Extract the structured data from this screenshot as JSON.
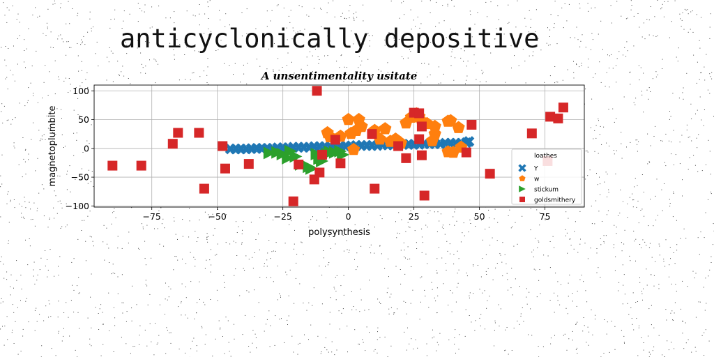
{
  "page": {
    "title": "anticyclonically depositive"
  },
  "chart_data": {
    "type": "scatter",
    "title": "A unsentimentality usitate",
    "xlabel": "polysynthesis",
    "ylabel": "magnetoplumbite",
    "xlim": [
      -97,
      90
    ],
    "ylim": [
      -102,
      110
    ],
    "xticks": [
      -75,
      -50,
      -25,
      0,
      25,
      50,
      75
    ],
    "yticks": [
      -100,
      -50,
      0,
      50,
      100
    ],
    "grid": true,
    "legend": {
      "title": "loathes",
      "placement": "lower-right"
    },
    "series": [
      {
        "name": "Y",
        "marker": "x",
        "color": "#1f77b4",
        "points": [
          [
            -45,
            -1
          ],
          [
            -43,
            -1
          ],
          [
            -41,
            -1
          ],
          [
            -39,
            -1
          ],
          [
            -37,
            -0.5
          ],
          [
            -35,
            0
          ],
          [
            -33,
            0
          ],
          [
            -31,
            0
          ],
          [
            -29,
            0
          ],
          [
            -27,
            1
          ],
          [
            -25,
            1
          ],
          [
            -23,
            1
          ],
          [
            -21,
            2
          ],
          [
            -19,
            2
          ],
          [
            -17,
            2
          ],
          [
            -15,
            2
          ],
          [
            -13,
            3
          ],
          [
            -11,
            3
          ],
          [
            -9,
            3
          ],
          [
            -7,
            3
          ],
          [
            -5,
            4
          ],
          [
            -3,
            4
          ],
          [
            -1,
            4
          ],
          [
            1,
            4
          ],
          [
            3,
            5
          ],
          [
            5,
            5
          ],
          [
            7,
            5
          ],
          [
            9,
            5
          ],
          [
            11,
            5
          ],
          [
            13,
            6
          ],
          [
            15,
            6
          ],
          [
            17,
            6
          ],
          [
            19,
            6
          ],
          [
            21,
            7
          ],
          [
            23,
            7
          ],
          [
            25,
            7
          ],
          [
            27,
            7
          ],
          [
            29,
            8
          ],
          [
            31,
            8
          ],
          [
            33,
            8
          ],
          [
            35,
            8
          ],
          [
            37,
            9
          ],
          [
            39,
            9
          ],
          [
            41,
            9
          ],
          [
            43,
            9
          ],
          [
            45,
            10
          ],
          [
            46,
            12
          ]
        ]
      },
      {
        "name": "w",
        "marker": "pentagon",
        "color": "#ff7f0e",
        "points": [
          [
            -8,
            27
          ],
          [
            -7,
            20
          ],
          [
            -3,
            21
          ],
          [
            0,
            50
          ],
          [
            1,
            26
          ],
          [
            2,
            -2
          ],
          [
            3,
            31
          ],
          [
            4,
            50
          ],
          [
            5,
            38
          ],
          [
            10,
            31
          ],
          [
            12,
            16
          ],
          [
            14,
            34
          ],
          [
            16,
            12
          ],
          [
            18,
            16
          ],
          [
            20,
            9
          ],
          [
            22,
            44
          ],
          [
            24,
            54
          ],
          [
            26,
            60
          ],
          [
            27,
            55
          ],
          [
            28,
            47
          ],
          [
            30,
            43
          ],
          [
            32,
            13
          ],
          [
            33,
            25
          ],
          [
            33,
            38
          ],
          [
            38,
            47
          ],
          [
            38,
            -6
          ],
          [
            39,
            48
          ],
          [
            40,
            -7
          ],
          [
            42,
            36
          ],
          [
            43,
            2
          ]
        ]
      },
      {
        "name": "stickum",
        "marker": "triangle-right",
        "color": "#2ca02c",
        "points": [
          [
            -30,
            -8
          ],
          [
            -27,
            -7
          ],
          [
            -25,
            -10
          ],
          [
            -23,
            -17
          ],
          [
            -22,
            -5
          ],
          [
            -20,
            -14
          ],
          [
            -18,
            -28
          ],
          [
            -15,
            -32
          ],
          [
            -14,
            -35
          ],
          [
            -12,
            -10
          ],
          [
            -11,
            -18
          ],
          [
            -10,
            -22
          ],
          [
            -8,
            -10
          ],
          [
            -7,
            -6
          ],
          [
            -5,
            -7
          ],
          [
            -3,
            -5
          ],
          [
            -2,
            -11
          ]
        ]
      },
      {
        "name": "goldsmithery",
        "marker": "square",
        "color": "#d62728",
        "points": [
          [
            -90,
            -30
          ],
          [
            -79,
            -30
          ],
          [
            -67,
            8
          ],
          [
            -65,
            27
          ],
          [
            -57,
            27
          ],
          [
            -55,
            -70
          ],
          [
            -48,
            4
          ],
          [
            -47,
            -35
          ],
          [
            -38,
            -27
          ],
          [
            -21,
            -92
          ],
          [
            -19,
            -28
          ],
          [
            -13,
            -54
          ],
          [
            -12,
            100
          ],
          [
            -11,
            -42
          ],
          [
            -10,
            -11
          ],
          [
            -5,
            15
          ],
          [
            -3,
            -26
          ],
          [
            9,
            25
          ],
          [
            10,
            -70
          ],
          [
            19,
            4
          ],
          [
            22,
            -17
          ],
          [
            25,
            62
          ],
          [
            27,
            16
          ],
          [
            27,
            61
          ],
          [
            28,
            38
          ],
          [
            28,
            -12
          ],
          [
            29,
            -82
          ],
          [
            45,
            -7
          ],
          [
            47,
            41
          ],
          [
            54,
            -44
          ],
          [
            70,
            26
          ],
          [
            76,
            -22
          ],
          [
            77,
            55
          ],
          [
            80,
            52
          ],
          [
            82,
            71
          ]
        ]
      }
    ]
  }
}
